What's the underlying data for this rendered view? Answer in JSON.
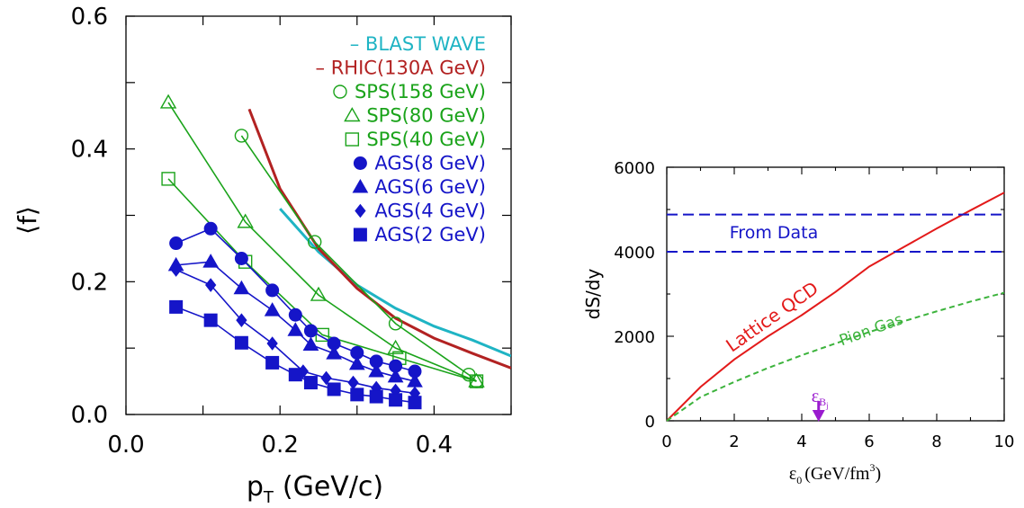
{
  "chart_data": [
    {
      "type": "line",
      "xlabel_main": "p",
      "xlabel_sub": "T",
      "xlabel_unit": "(GeV/c)",
      "ylabel": "⟨f⟩",
      "xlim": [
        0.0,
        0.5
      ],
      "ylim": [
        0.0,
        0.6
      ],
      "xticks": [
        0.0,
        0.2,
        0.4
      ],
      "xtick_labels": [
        "0.0",
        "0.2",
        "0.4"
      ],
      "yticks": [
        0.0,
        0.2,
        0.4,
        0.6
      ],
      "ytick_labels": [
        "0.0",
        "0.2",
        "0.4",
        "0.6"
      ],
      "legend_position": "top-right",
      "series": [
        {
          "name": "BLAST WAVE",
          "legend_text": "– BLAST WAVE",
          "color": "#1fb4c4",
          "marker": "none",
          "legend_marker": "none",
          "x": [
            0.2,
            0.25,
            0.3,
            0.35,
            0.4,
            0.45,
            0.5
          ],
          "y": [
            0.31,
            0.245,
            0.195,
            0.16,
            0.133,
            0.112,
            0.088
          ]
        },
        {
          "name": "RHIC(130A GeV)",
          "legend_text": "– RHIC(130A GeV)",
          "color": "#b22222",
          "marker": "none",
          "legend_marker": "none",
          "x": [
            0.16,
            0.2,
            0.25,
            0.3,
            0.35,
            0.4,
            0.45,
            0.5
          ],
          "y": [
            0.46,
            0.34,
            0.25,
            0.19,
            0.145,
            0.115,
            0.092,
            0.07
          ]
        },
        {
          "name": "SPS(158 GeV)",
          "legend_text": "SPS(158 GeV)",
          "color": "#1aa31a",
          "marker": "circle-open",
          "legend_marker": "circle-open",
          "x": [
            0.15,
            0.245,
            0.35,
            0.445,
            0.455
          ],
          "y": [
            0.42,
            0.26,
            0.137,
            0.06,
            0.05
          ]
        },
        {
          "name": "SPS(80 GeV)",
          "legend_text": "SPS(80 GeV)",
          "color": "#1aa31a",
          "marker": "triangle-open",
          "legend_marker": "triangle-open",
          "x": [
            0.055,
            0.155,
            0.25,
            0.35,
            0.455
          ],
          "y": [
            0.47,
            0.29,
            0.18,
            0.1,
            0.05
          ]
        },
        {
          "name": "SPS(40 GeV)",
          "legend_text": "SPS(40 GeV)",
          "color": "#1aa31a",
          "marker": "square-open",
          "legend_marker": "square-open",
          "x": [
            0.055,
            0.155,
            0.255,
            0.355,
            0.455
          ],
          "y": [
            0.355,
            0.23,
            0.12,
            0.085,
            0.05
          ]
        },
        {
          "name": "AGS(8 GeV)",
          "legend_text": "AGS(8 GeV)",
          "color": "#1515c8",
          "marker": "circle",
          "legend_marker": "circle",
          "x": [
            0.065,
            0.11,
            0.15,
            0.19,
            0.22,
            0.24,
            0.27,
            0.3,
            0.325,
            0.35,
            0.375
          ],
          "y": [
            0.258,
            0.28,
            0.235,
            0.187,
            0.15,
            0.126,
            0.107,
            0.093,
            0.08,
            0.073,
            0.065
          ]
        },
        {
          "name": "AGS(6 GeV)",
          "legend_text": "AGS(6 GeV)",
          "color": "#1515c8",
          "marker": "triangle",
          "legend_marker": "triangle",
          "x": [
            0.065,
            0.11,
            0.15,
            0.19,
            0.22,
            0.24,
            0.27,
            0.3,
            0.325,
            0.35,
            0.375
          ],
          "y": [
            0.225,
            0.23,
            0.19,
            0.157,
            0.127,
            0.105,
            0.092,
            0.076,
            0.065,
            0.057,
            0.05
          ]
        },
        {
          "name": "AGS(4 GeV)",
          "legend_text": "AGS(4 GeV)",
          "color": "#1515c8",
          "marker": "diamond",
          "legend_marker": "diamond",
          "x": [
            0.065,
            0.11,
            0.15,
            0.19,
            0.23,
            0.26,
            0.295,
            0.325,
            0.35,
            0.375
          ],
          "y": [
            0.218,
            0.195,
            0.142,
            0.107,
            0.065,
            0.055,
            0.048,
            0.04,
            0.036,
            0.032
          ]
        },
        {
          "name": "AGS(2 GeV)",
          "legend_text": "AGS(2 GeV)",
          "color": "#1515c8",
          "marker": "square",
          "legend_marker": "square",
          "x": [
            0.065,
            0.11,
            0.15,
            0.19,
            0.22,
            0.24,
            0.27,
            0.3,
            0.325,
            0.35,
            0.375
          ],
          "y": [
            0.162,
            0.142,
            0.108,
            0.078,
            0.06,
            0.048,
            0.038,
            0.03,
            0.027,
            0.022,
            0.018
          ]
        }
      ]
    },
    {
      "type": "line",
      "xlabel_main": "ε",
      "xlabel_sub": "0",
      "xlabel_unit": "(GeV/fm",
      "xlabel_sup": "3",
      "xlabel_close": ")",
      "ylabel": "dS/dy",
      "xlim": [
        0,
        10
      ],
      "ylim": [
        0,
        6000
      ],
      "xticks": [
        0,
        2,
        4,
        6,
        8,
        10
      ],
      "xtick_labels": [
        "0",
        "2",
        "4",
        "6",
        "8",
        "10"
      ],
      "yticks": [
        0,
        2000,
        4000,
        6000
      ],
      "ytick_labels": [
        "0",
        "2000",
        "4000",
        "6000"
      ],
      "series": [
        {
          "name": "Lattice QCD",
          "color": "#e31a1a",
          "dash": "solid",
          "x": [
            0,
            1,
            2,
            3,
            4,
            5,
            6,
            7,
            8,
            9,
            10
          ],
          "y": [
            0,
            800,
            1450,
            2000,
            2500,
            3050,
            3650,
            4100,
            4550,
            4980,
            5400
          ]
        },
        {
          "name": "Pion Gas",
          "color": "#3cb33c",
          "dash": "dashed",
          "x": [
            0,
            1,
            2,
            3,
            4,
            5,
            6,
            7,
            8,
            9,
            10
          ],
          "y": [
            0,
            560,
            920,
            1250,
            1550,
            1830,
            2100,
            2350,
            2590,
            2820,
            3030
          ]
        },
        {
          "name": "From Data",
          "color": "#1515c8",
          "dash": "dashed",
          "lines_y": [
            4000,
            4880
          ]
        }
      ],
      "annotations": {
        "lattice_label": "Lattice QCD",
        "pion_label": "Pion Gas",
        "data_label": "From Data",
        "arrow_main": "ε",
        "arrow_sub": "B",
        "arrow_subsub": "j",
        "arrow_x": 4.5,
        "arrow_color": "#9a1bcf"
      }
    }
  ]
}
